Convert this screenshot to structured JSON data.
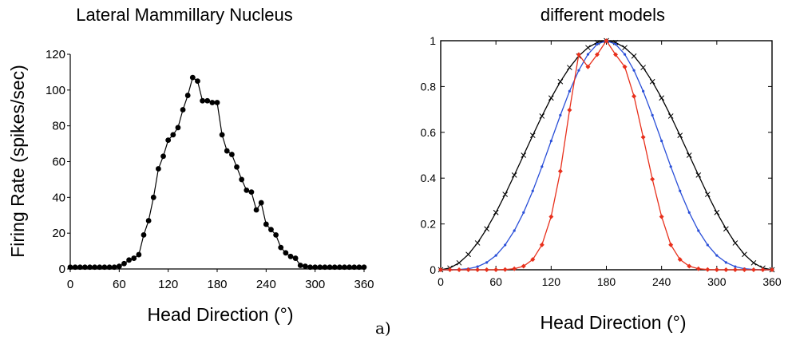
{
  "chart_data": [
    {
      "type": "line",
      "title": "Lateral Mammillary Nucleus",
      "xlabel": "Head Direction (°)",
      "ylabel": "Firing Rate (spikes/sec)",
      "xlim": [
        0,
        360
      ],
      "ylim": [
        0,
        120
      ],
      "xticks": [
        "0",
        "60",
        "120",
        "180",
        "240",
        "300",
        "360"
      ],
      "yticks": [
        "0",
        "20",
        "40",
        "60",
        "80",
        "100",
        "120"
      ],
      "grid": false,
      "series": [
        {
          "color": "#000000",
          "marker": "filled-circle",
          "x": [
            0,
            6,
            12,
            18,
            24,
            30,
            36,
            42,
            48,
            54,
            60,
            66,
            72,
            78,
            84,
            90,
            96,
            102,
            108,
            114,
            120,
            126,
            132,
            138,
            144,
            150,
            156,
            162,
            168,
            174,
            180,
            186,
            192,
            198,
            204,
            210,
            216,
            222,
            228,
            234,
            240,
            246,
            252,
            258,
            264,
            270,
            276,
            282,
            288,
            294,
            300,
            306,
            312,
            318,
            324,
            330,
            336,
            342,
            348,
            354,
            360
          ],
          "y": [
            1,
            1,
            1,
            1,
            1,
            1,
            1,
            1,
            1,
            1,
            1.5,
            3,
            5,
            6,
            8,
            19,
            27,
            40,
            56,
            63,
            72,
            75,
            79,
            89,
            97,
            107,
            105,
            94,
            94,
            93,
            93,
            75,
            66,
            64,
            57,
            50,
            44,
            43,
            33,
            37,
            25,
            22,
            19,
            12,
            9,
            7,
            6,
            2,
            1.5,
            1,
            1,
            1,
            1,
            1,
            1,
            1,
            1,
            1,
            1,
            1,
            1
          ]
        }
      ]
    },
    {
      "type": "line",
      "title": "different models",
      "xlabel": "Head Direction (°)",
      "ylabel": "",
      "xlim": [
        0,
        360
      ],
      "ylim": [
        0,
        1
      ],
      "xticks": [
        "0",
        "60",
        "120",
        "180",
        "240",
        "300",
        "360"
      ],
      "yticks": [
        "0",
        "0.2",
        "0.4",
        "0.6",
        "0.8",
        "1"
      ],
      "grid": false,
      "series": [
        {
          "color": "#000000",
          "marker": "x",
          "x": [
            0,
            10,
            20,
            30,
            40,
            50,
            60,
            70,
            80,
            90,
            100,
            110,
            120,
            130,
            140,
            150,
            160,
            170,
            180,
            190,
            200,
            210,
            220,
            230,
            240,
            250,
            260,
            270,
            280,
            290,
            300,
            310,
            320,
            330,
            340,
            350,
            360
          ],
          "y": [
            0,
            0.0076,
            0.0302,
            0.067,
            0.117,
            0.1786,
            0.25,
            0.329,
            0.4132,
            0.5,
            0.5868,
            0.671,
            0.75,
            0.8214,
            0.883,
            0.933,
            0.9698,
            0.9924,
            1,
            0.9924,
            0.9698,
            0.933,
            0.883,
            0.8214,
            0.75,
            0.671,
            0.5868,
            0.5,
            0.4132,
            0.329,
            0.25,
            0.1786,
            0.117,
            0.067,
            0.0302,
            0.0076,
            0
          ]
        },
        {
          "color": "#2a4fd8",
          "marker": "dot",
          "x": [
            0,
            10,
            20,
            30,
            40,
            50,
            60,
            70,
            80,
            90,
            100,
            110,
            120,
            130,
            140,
            150,
            160,
            170,
            180,
            190,
            200,
            210,
            220,
            230,
            240,
            250,
            260,
            270,
            280,
            290,
            300,
            310,
            320,
            330,
            340,
            350,
            360
          ],
          "y": [
            0,
            0.0001,
            0.0009,
            0.0045,
            0.0137,
            0.0319,
            0.0625,
            0.1082,
            0.1707,
            0.25,
            0.3443,
            0.4502,
            0.5625,
            0.6747,
            0.7797,
            0.8705,
            0.9405,
            0.9848,
            1,
            0.9848,
            0.9405,
            0.8705,
            0.7797,
            0.6747,
            0.5625,
            0.4502,
            0.3443,
            0.25,
            0.1707,
            0.1082,
            0.0625,
            0.0319,
            0.0137,
            0.0045,
            0.0009,
            0.0001,
            0
          ]
        },
        {
          "color": "#e8301c",
          "marker": "diamond",
          "x": [
            0,
            10,
            20,
            30,
            40,
            50,
            60,
            70,
            80,
            90,
            100,
            110,
            120,
            130,
            140,
            150,
            160,
            170,
            180,
            190,
            200,
            210,
            220,
            230,
            240,
            250,
            260,
            270,
            280,
            290,
            300,
            310,
            320,
            330,
            340,
            350,
            360
          ],
          "y": [
            0,
            0,
            0,
            0,
            0,
            0,
            0.0001,
            0.001,
            0.0045,
            0.0156,
            0.0447,
            0.109,
            0.2316,
            0.4304,
            0.6974,
            0.9396,
            0.8858,
            0.9395,
            1,
            0.9395,
            0.8858,
            0.7575,
            0.5787,
            0.3956,
            0.2316,
            0.109,
            0.0447,
            0.0156,
            0.0045,
            0.001,
            0.0001,
            0,
            0,
            0,
            0,
            0,
            0
          ]
        }
      ]
    }
  ],
  "panel_label": "a)"
}
